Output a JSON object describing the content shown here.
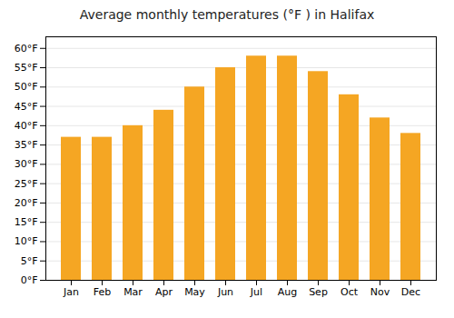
{
  "chart_data": {
    "type": "bar",
    "title": "Average monthly temperatures (°F ) in Halifax",
    "categories": [
      "Jan",
      "Feb",
      "Mar",
      "Apr",
      "May",
      "Jun",
      "Jul",
      "Aug",
      "Sep",
      "Oct",
      "Nov",
      "Dec"
    ],
    "values": [
      37,
      37,
      40,
      44,
      50,
      55,
      58,
      58,
      54,
      48,
      42,
      38
    ],
    "color": "#F5A623",
    "ylim": [
      0,
      63
    ],
    "yticks": [
      {
        "value": 0,
        "label": "0°F"
      },
      {
        "value": 5,
        "label": "5°F"
      },
      {
        "value": 10,
        "label": "10°F"
      },
      {
        "value": 15,
        "label": "15°F"
      },
      {
        "value": 20,
        "label": "20°F"
      },
      {
        "value": 25,
        "label": "25°F"
      },
      {
        "value": 30,
        "label": "30°F"
      },
      {
        "value": 35,
        "label": "35°F"
      },
      {
        "value": 40,
        "label": "40°F"
      },
      {
        "value": 45,
        "label": "45°F"
      },
      {
        "value": 50,
        "label": "50°F"
      },
      {
        "value": 55,
        "label": "55°F"
      },
      {
        "value": 60,
        "label": "60°F"
      }
    ],
    "grid": true
  }
}
